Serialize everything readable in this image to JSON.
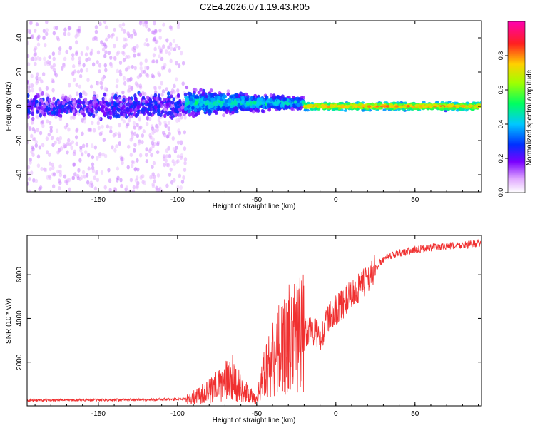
{
  "title": "C2E4.2026.071.19.43.R05",
  "colors": {
    "snr_line": "#f03030",
    "frame": "#000000"
  },
  "chart_data": [
    {
      "type": "heatmap",
      "name": "spectrogram",
      "xlabel": "Height of straight line (km)",
      "ylabel": "Frequency (Hz)",
      "xlim": [
        -195,
        92
      ],
      "ylim": [
        -50,
        50
      ],
      "xticks": [
        -150,
        -100,
        -50,
        0,
        50
      ],
      "yticks": [
        -40,
        -20,
        0,
        20,
        40
      ],
      "colorbar": {
        "label": "Normalized spectral amplitude",
        "range": [
          0,
          1
        ],
        "ticks": [
          0.0,
          0.2,
          0.4,
          0.6,
          0.8
        ],
        "tick_labels": [
          "0.0",
          "0.2",
          "0.4",
          "0.6",
          "0.8"
        ]
      },
      "regions": [
        {
          "x_range": [
            -195,
            -95
          ],
          "freq_center": 0,
          "freq_spread": 50,
          "amplitude": 0.15,
          "description_level": "scattered noise"
        },
        {
          "x_range": [
            -95,
            -20
          ],
          "freq_center": 2,
          "freq_spread": 10,
          "amplitude": 0.45
        },
        {
          "x_range": [
            -20,
            92
          ],
          "freq_center": 0,
          "freq_spread": 3,
          "amplitude": 0.8
        }
      ]
    },
    {
      "type": "line",
      "name": "snr",
      "xlabel": "Height of straight line (km)",
      "ylabel": "SNR (10 * v/v)",
      "xlim": [
        -195,
        92
      ],
      "ylim": [
        0,
        7800
      ],
      "xticks": [
        -150,
        -100,
        -50,
        0,
        50
      ],
      "yticks": [
        2000,
        4000,
        6000
      ],
      "series": [
        {
          "name": "SNR",
          "x": [
            -195,
            -180,
            -160,
            -140,
            -120,
            -100,
            -90,
            -80,
            -75,
            -70,
            -65,
            -60,
            -55,
            -50,
            -45,
            -40,
            -35,
            -30,
            -25,
            -20,
            -15,
            -10,
            -5,
            0,
            5,
            10,
            15,
            20,
            25,
            30,
            40,
            50,
            60,
            70,
            80,
            92
          ],
          "values": [
            250,
            260,
            270,
            270,
            280,
            300,
            380,
            650,
            900,
            1100,
            1300,
            800,
            500,
            300,
            1500,
            2200,
            2600,
            3000,
            3200,
            3400,
            3500,
            3100,
            4000,
            4400,
            4700,
            5100,
            5400,
            5800,
            6300,
            6700,
            7000,
            7150,
            7250,
            7300,
            7350,
            7450
          ]
        }
      ]
    }
  ]
}
